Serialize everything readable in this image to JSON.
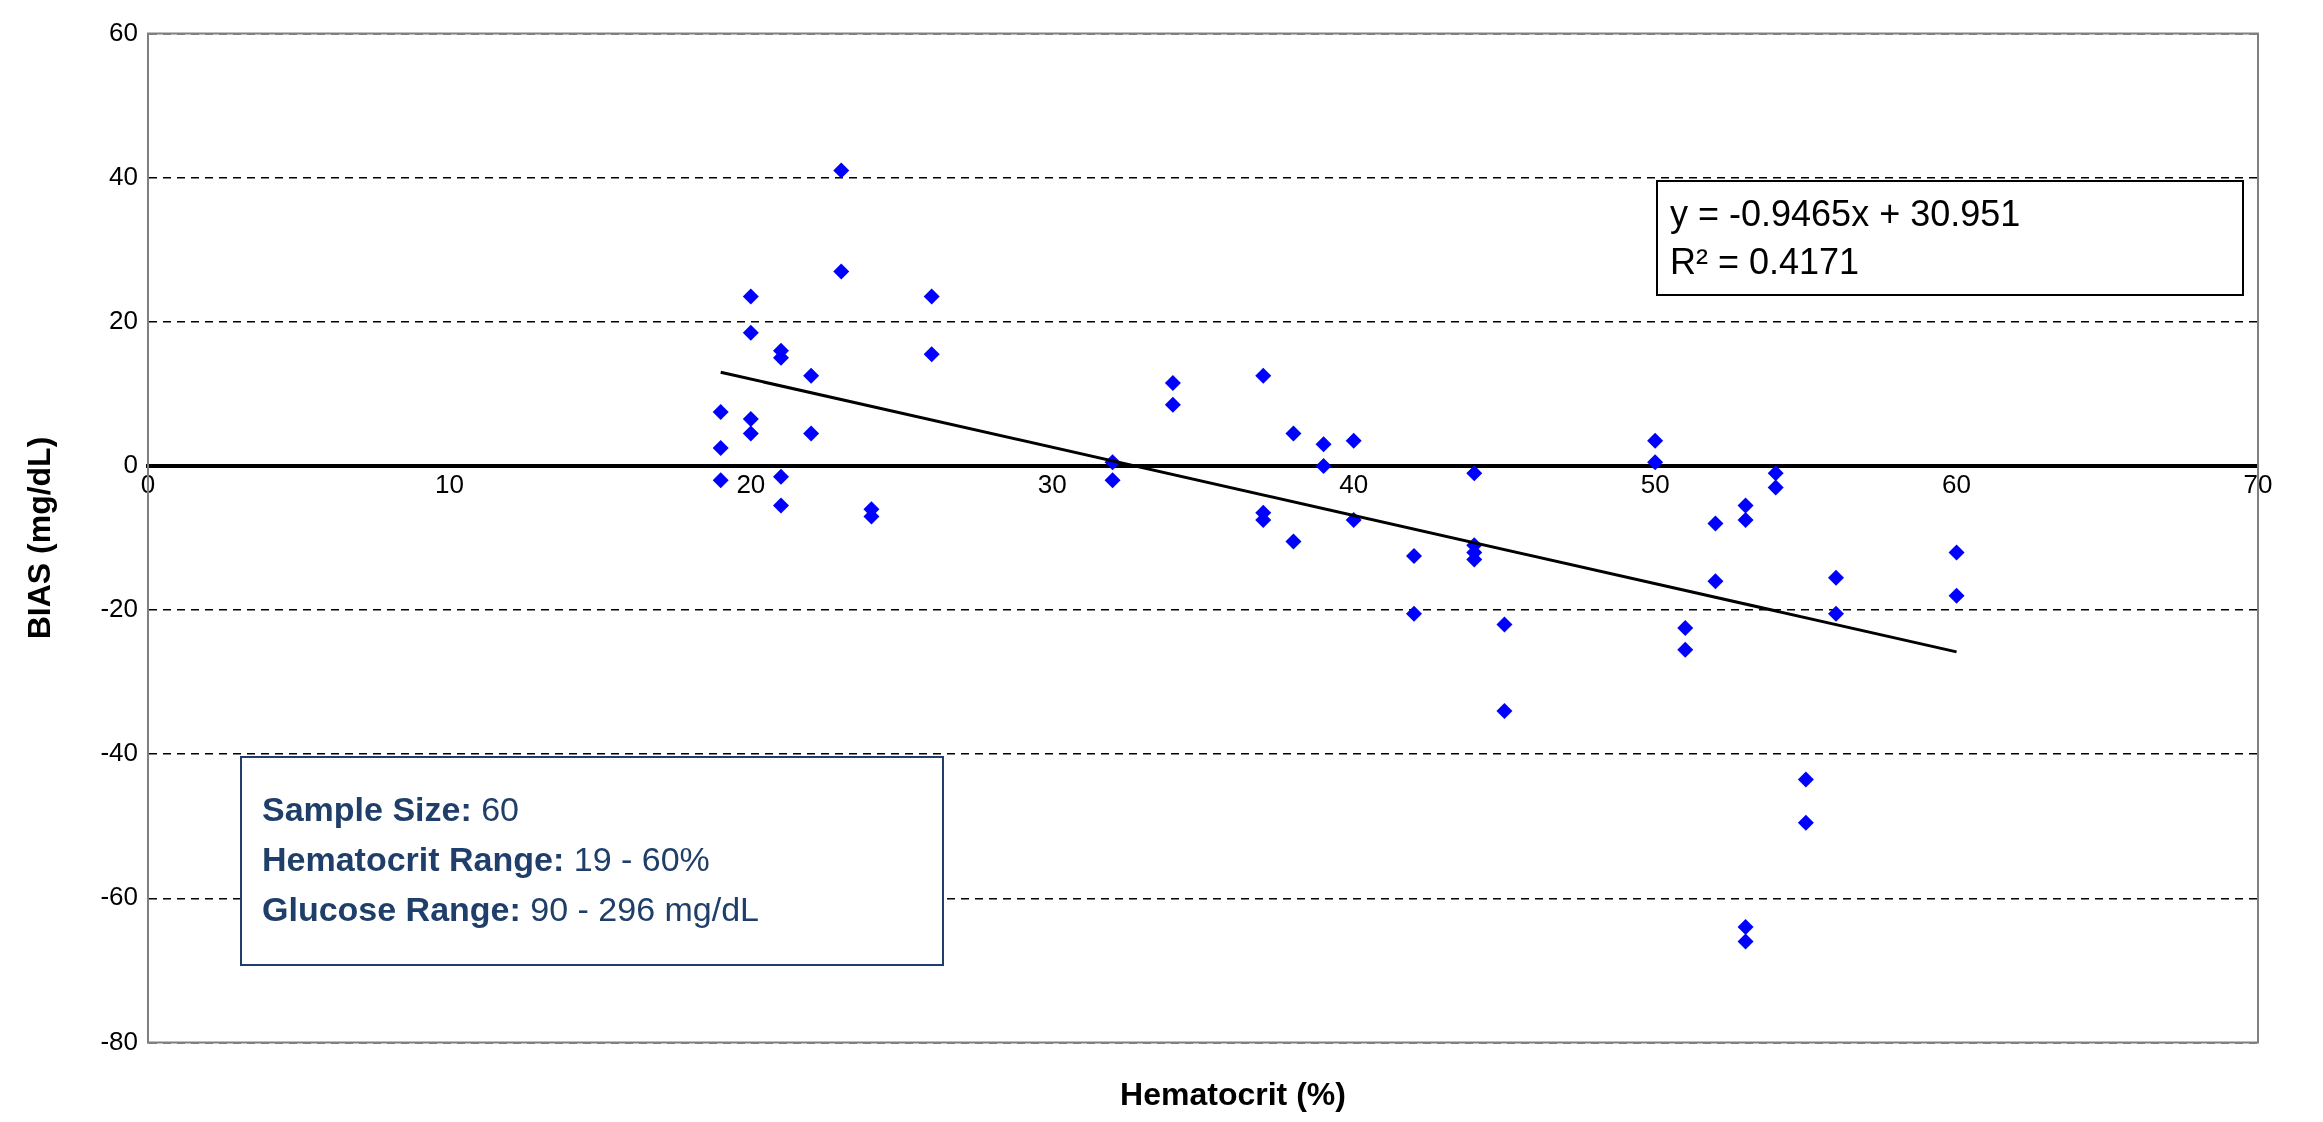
{
  "chart_data": {
    "type": "scatter",
    "xlabel": "Hematocrit (%)",
    "ylabel": "BIAS (mg/dL)",
    "xlim": [
      0,
      70
    ],
    "xticks": [
      0,
      10,
      20,
      30,
      40,
      50,
      60,
      70
    ],
    "ylim": [
      -80,
      60
    ],
    "yticks": [
      -80,
      -60,
      -40,
      -20,
      0,
      20,
      40,
      60
    ],
    "grid": "y",
    "legend": false,
    "marker": "diamond",
    "series": [
      {
        "color": "#0000ff",
        "x": [
          19,
          19,
          19,
          20,
          20,
          20,
          20,
          21,
          21,
          21,
          21,
          22,
          22,
          23,
          23,
          24,
          24,
          26,
          26,
          32,
          32,
          34,
          34,
          37,
          37,
          37,
          38,
          38,
          39,
          39,
          40,
          40,
          42,
          42,
          44,
          44,
          44,
          44,
          45,
          45,
          50,
          50,
          51,
          51,
          52,
          52,
          53,
          53,
          53,
          53,
          54,
          54,
          55,
          55,
          56,
          56,
          60,
          60
        ],
        "values": [
          7.5,
          2.5,
          -2,
          23.5,
          18.5,
          6.5,
          4.5,
          16,
          15,
          -1.5,
          -5.5,
          12.5,
          4.5,
          41,
          27,
          -6,
          -7,
          23.5,
          15.5,
          0.5,
          -2,
          11.5,
          8.5,
          12.5,
          -6.5,
          -7.5,
          4.5,
          -10.5,
          3,
          0,
          3.5,
          -7.5,
          -12.5,
          -20.5,
          -1,
          -11,
          -12,
          -13,
          -22,
          -34,
          3.5,
          0.5,
          -22.5,
          -25.5,
          -8,
          -16,
          -5.5,
          -7.5,
          -64,
          -66,
          -1,
          -3,
          -43.5,
          -49.5,
          -15.5,
          -20.5,
          -12,
          -18
        ]
      },
      {
        "type": "line",
        "color": "#000000",
        "marker": "none",
        "x": [
          19,
          60
        ],
        "values": [
          13.0,
          -25.8
        ]
      }
    ],
    "annotations": [
      "y = -0.9465x + 30.951",
      "R² = 0.4171",
      "Sample Size: 60",
      "Hematocrit Range: 19 - 60%",
      "Glucose Range: 90 - 296 mg/dL"
    ]
  }
}
